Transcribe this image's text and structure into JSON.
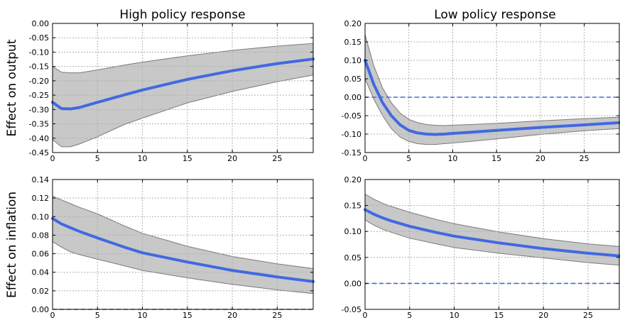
{
  "row_labels": [
    "Effect on output",
    "Effect on inflation"
  ],
  "col_titles": [
    "High policy response",
    "Low policy response"
  ],
  "colors": {
    "line": "#4169e1",
    "band_fill": "#c8c8c8",
    "band_edge": "#7a7a7a",
    "grid": "#b0b0b0",
    "zero": "#4169e1"
  },
  "chart_data": [
    {
      "type": "line",
      "title": "High policy response",
      "ylabel": "Effect on output",
      "xlim": [
        0,
        29
      ],
      "ylim": [
        -0.45,
        0.0
      ],
      "xticks": [
        0,
        5,
        10,
        15,
        20,
        25
      ],
      "xtick_labels": [
        "0",
        "5",
        "10",
        "15",
        "20",
        "25"
      ],
      "yticks": [
        -0.45,
        -0.4,
        -0.35,
        -0.3,
        -0.25,
        -0.2,
        -0.15,
        -0.1,
        -0.05,
        0.0
      ],
      "ytick_labels": [
        "-0.45",
        "-0.40",
        "-0.35",
        "-0.30",
        "-0.25",
        "-0.20",
        "-0.15",
        "-0.10",
        "-0.05",
        "0.00"
      ],
      "grid": true,
      "zero_line": false,
      "x": [
        0,
        1,
        2,
        3,
        5,
        8,
        10,
        15,
        20,
        25,
        29
      ],
      "values": [
        -0.275,
        -0.297,
        -0.298,
        -0.293,
        -0.275,
        -0.249,
        -0.232,
        -0.195,
        -0.165,
        -0.14,
        -0.124
      ],
      "upper": [
        -0.15,
        -0.17,
        -0.172,
        -0.172,
        -0.162,
        -0.145,
        -0.135,
        -0.113,
        -0.094,
        -0.079,
        -0.07
      ],
      "lower": [
        -0.405,
        -0.43,
        -0.43,
        -0.42,
        -0.395,
        -0.352,
        -0.33,
        -0.277,
        -0.237,
        -0.203,
        -0.18
      ]
    },
    {
      "type": "line",
      "title": "Low policy response",
      "ylabel": "",
      "xlim": [
        0,
        29
      ],
      "ylim": [
        -0.15,
        0.2
      ],
      "xticks": [
        0,
        5,
        10,
        15,
        20,
        25
      ],
      "xtick_labels": [
        "0",
        "5",
        "10",
        "15",
        "20",
        "25"
      ],
      "yticks": [
        -0.15,
        -0.1,
        -0.05,
        0.0,
        0.05,
        0.1,
        0.15,
        0.2
      ],
      "ytick_labels": [
        "-0.15",
        "-0.10",
        "-0.05",
        "0.00",
        "0.05",
        "0.10",
        "0.15",
        "0.20"
      ],
      "grid": true,
      "zero_line": true,
      "x": [
        0,
        1,
        2,
        3,
        4,
        5,
        6,
        7,
        8,
        9,
        10,
        12,
        15,
        20,
        25,
        29
      ],
      "values": [
        0.1,
        0.035,
        -0.015,
        -0.05,
        -0.075,
        -0.09,
        -0.097,
        -0.1,
        -0.101,
        -0.1,
        -0.098,
        -0.095,
        -0.09,
        -0.082,
        -0.075,
        -0.069
      ],
      "upper": [
        0.17,
        0.085,
        0.025,
        -0.015,
        -0.043,
        -0.06,
        -0.069,
        -0.074,
        -0.076,
        -0.077,
        -0.076,
        -0.074,
        -0.071,
        -0.064,
        -0.058,
        -0.054
      ],
      "lower": [
        0.05,
        -0.005,
        -0.05,
        -0.085,
        -0.108,
        -0.12,
        -0.126,
        -0.128,
        -0.128,
        -0.126,
        -0.124,
        -0.12,
        -0.113,
        -0.101,
        -0.091,
        -0.085
      ]
    },
    {
      "type": "line",
      "title": "",
      "ylabel": "Effect on inflation",
      "xlim": [
        0,
        29
      ],
      "ylim": [
        0.0,
        0.14
      ],
      "xticks": [
        0,
        5,
        10,
        15,
        20,
        25
      ],
      "xtick_labels": [
        "0",
        "5",
        "10",
        "15",
        "20",
        "25"
      ],
      "yticks": [
        0.0,
        0.02,
        0.04,
        0.06,
        0.08,
        0.1,
        0.12,
        0.14
      ],
      "ytick_labels": [
        "0.00",
        "0.02",
        "0.04",
        "0.06",
        "0.08",
        "0.10",
        "0.12",
        "0.14"
      ],
      "grid": true,
      "zero_line": true,
      "x": [
        0,
        1,
        2,
        3,
        5,
        8,
        10,
        15,
        20,
        25,
        29
      ],
      "values": [
        0.098,
        0.092,
        0.088,
        0.084,
        0.077,
        0.067,
        0.061,
        0.051,
        0.042,
        0.035,
        0.03
      ],
      "upper": [
        0.122,
        0.118,
        0.114,
        0.11,
        0.103,
        0.09,
        0.082,
        0.068,
        0.057,
        0.049,
        0.044
      ],
      "lower": [
        0.073,
        0.067,
        0.062,
        0.059,
        0.054,
        0.047,
        0.042,
        0.034,
        0.027,
        0.021,
        0.017
      ]
    },
    {
      "type": "line",
      "title": "",
      "ylabel": "",
      "xlim": [
        0,
        28.5
      ],
      "ylim": [
        -0.05,
        0.2
      ],
      "xticks": [
        0,
        5,
        10,
        15,
        20,
        25
      ],
      "xtick_labels": [
        "0",
        "5",
        "10",
        "15",
        "20",
        "25"
      ],
      "yticks": [
        -0.05,
        0.0,
        0.05,
        0.1,
        0.15,
        0.2
      ],
      "ytick_labels": [
        "-0.05",
        "0.00",
        "0.05",
        "0.10",
        "0.15",
        "0.20"
      ],
      "grid": true,
      "zero_line": true,
      "x": [
        0,
        1,
        2,
        3,
        5,
        8,
        10,
        15,
        20,
        25,
        28.5
      ],
      "values": [
        0.142,
        0.133,
        0.126,
        0.12,
        0.11,
        0.098,
        0.091,
        0.078,
        0.067,
        0.058,
        0.053
      ],
      "upper": [
        0.172,
        0.162,
        0.154,
        0.148,
        0.137,
        0.123,
        0.115,
        0.099,
        0.086,
        0.076,
        0.071
      ],
      "lower": [
        0.122,
        0.112,
        0.104,
        0.098,
        0.087,
        0.076,
        0.069,
        0.058,
        0.049,
        0.04,
        0.035
      ]
    }
  ]
}
